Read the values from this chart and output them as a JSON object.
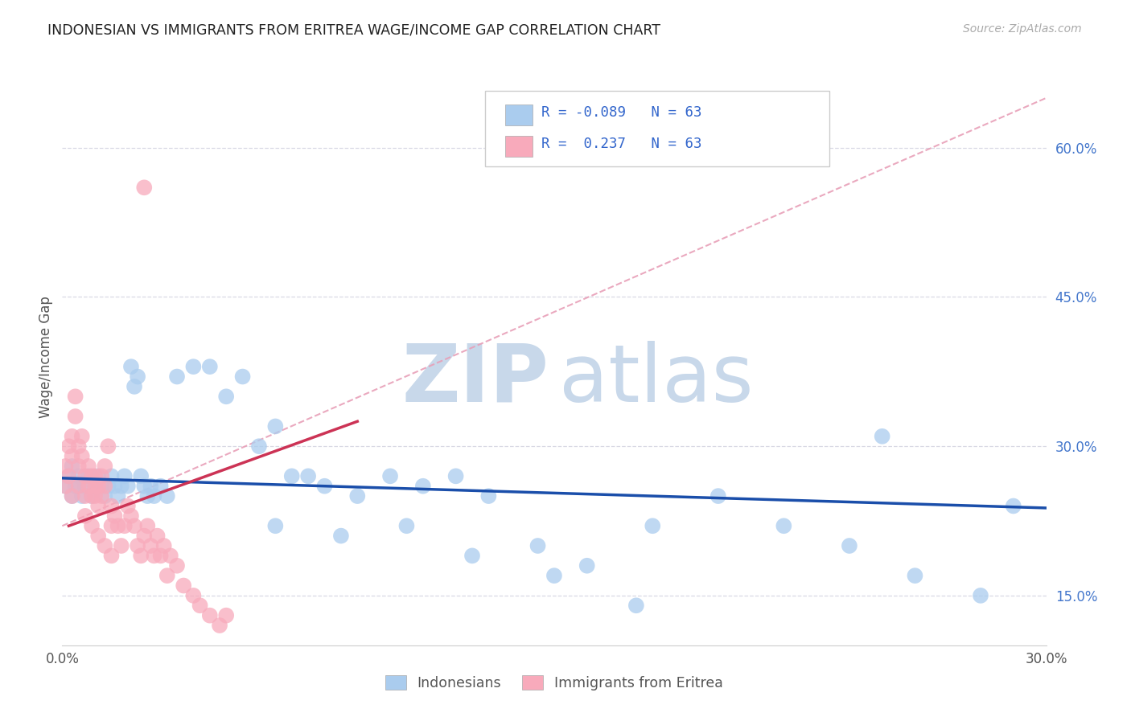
{
  "title": "INDONESIAN VS IMMIGRANTS FROM ERITREA WAGE/INCOME GAP CORRELATION CHART",
  "source": "Source: ZipAtlas.com",
  "ylabel": "Wage/Income Gap",
  "xlim": [
    0.0,
    0.3
  ],
  "ylim": [
    0.1,
    0.68
  ],
  "xtick_positions": [
    0.0,
    0.05,
    0.1,
    0.15,
    0.2,
    0.25,
    0.3
  ],
  "xtick_labels": [
    "0.0%",
    "",
    "",
    "",
    "",
    "",
    "30.0%"
  ],
  "ytick_positions": [
    0.15,
    0.3,
    0.45,
    0.6
  ],
  "ytick_labels": [
    "15.0%",
    "30.0%",
    "45.0%",
    "60.0%"
  ],
  "R_blue": -0.089,
  "R_pink": 0.237,
  "N": 63,
  "blue_scatter_color": "#aaccee",
  "pink_scatter_color": "#f8aabb",
  "blue_line_color": "#1a4eaa",
  "pink_line_color": "#cc3355",
  "diag_line_color": "#e8a0b8",
  "grid_color": "#d8d8e4",
  "background_color": "#ffffff",
  "title_color": "#222222",
  "source_color": "#aaaaaa",
  "axis_label_color": "#555555",
  "ytick_color": "#4477cc",
  "xtick_color": "#555555",
  "legend_text_color": "#3366cc",
  "legend_label_color": "#555555",
  "indo_x": [
    0.001,
    0.002,
    0.003,
    0.003,
    0.004,
    0.005,
    0.005,
    0.006,
    0.007,
    0.008,
    0.009,
    0.01,
    0.011,
    0.012,
    0.013,
    0.014,
    0.015,
    0.016,
    0.017,
    0.018,
    0.019,
    0.02,
    0.021,
    0.022,
    0.023,
    0.024,
    0.025,
    0.026,
    0.027,
    0.028,
    0.03,
    0.032,
    0.035,
    0.04,
    0.045,
    0.05,
    0.055,
    0.06,
    0.065,
    0.07,
    0.075,
    0.08,
    0.09,
    0.1,
    0.11,
    0.12,
    0.13,
    0.145,
    0.16,
    0.18,
    0.2,
    0.22,
    0.24,
    0.26,
    0.28,
    0.065,
    0.085,
    0.105,
    0.125,
    0.15,
    0.175,
    0.25,
    0.29
  ],
  "indo_y": [
    0.26,
    0.27,
    0.25,
    0.28,
    0.26,
    0.27,
    0.26,
    0.25,
    0.26,
    0.27,
    0.25,
    0.26,
    0.27,
    0.26,
    0.25,
    0.26,
    0.27,
    0.26,
    0.25,
    0.26,
    0.27,
    0.26,
    0.38,
    0.36,
    0.37,
    0.27,
    0.26,
    0.25,
    0.26,
    0.25,
    0.26,
    0.25,
    0.37,
    0.38,
    0.38,
    0.35,
    0.37,
    0.3,
    0.32,
    0.27,
    0.27,
    0.26,
    0.25,
    0.27,
    0.26,
    0.27,
    0.25,
    0.2,
    0.18,
    0.22,
    0.25,
    0.22,
    0.2,
    0.17,
    0.15,
    0.22,
    0.21,
    0.22,
    0.19,
    0.17,
    0.14,
    0.31,
    0.24
  ],
  "erit_x": [
    0.001,
    0.001,
    0.002,
    0.002,
    0.003,
    0.003,
    0.003,
    0.004,
    0.004,
    0.005,
    0.005,
    0.005,
    0.006,
    0.006,
    0.007,
    0.007,
    0.008,
    0.008,
    0.009,
    0.009,
    0.01,
    0.01,
    0.01,
    0.011,
    0.011,
    0.012,
    0.012,
    0.013,
    0.013,
    0.014,
    0.015,
    0.015,
    0.016,
    0.017,
    0.018,
    0.019,
    0.02,
    0.021,
    0.022,
    0.023,
    0.024,
    0.025,
    0.026,
    0.027,
    0.028,
    0.029,
    0.03,
    0.031,
    0.032,
    0.033,
    0.035,
    0.037,
    0.04,
    0.042,
    0.045,
    0.048,
    0.05,
    0.007,
    0.009,
    0.011,
    0.013,
    0.015,
    0.025
  ],
  "erit_y": [
    0.26,
    0.28,
    0.3,
    0.27,
    0.25,
    0.29,
    0.31,
    0.33,
    0.35,
    0.26,
    0.28,
    0.3,
    0.29,
    0.31,
    0.27,
    0.25,
    0.28,
    0.26,
    0.25,
    0.27,
    0.25,
    0.27,
    0.26,
    0.24,
    0.26,
    0.27,
    0.25,
    0.28,
    0.26,
    0.3,
    0.22,
    0.24,
    0.23,
    0.22,
    0.2,
    0.22,
    0.24,
    0.23,
    0.22,
    0.2,
    0.19,
    0.21,
    0.22,
    0.2,
    0.19,
    0.21,
    0.19,
    0.2,
    0.17,
    0.19,
    0.18,
    0.16,
    0.15,
    0.14,
    0.13,
    0.12,
    0.13,
    0.23,
    0.22,
    0.21,
    0.2,
    0.19,
    0.56
  ]
}
